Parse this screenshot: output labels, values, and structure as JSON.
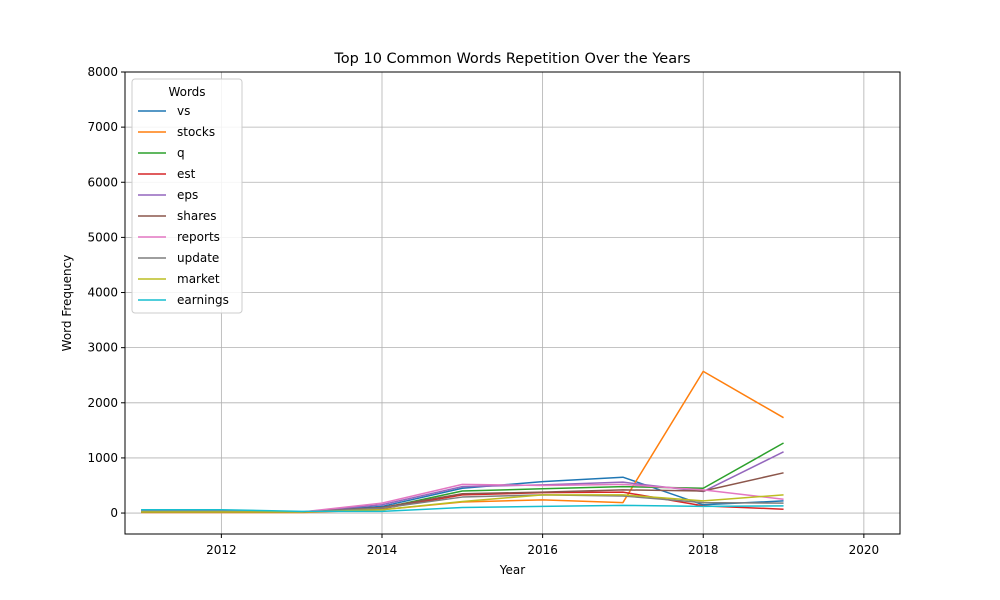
{
  "chart_data": {
    "type": "line",
    "title": "Top 10 Common Words Repetition Over the Years",
    "xlabel": "Year",
    "ylabel": "Word Frequency",
    "xlim": [
      2010.8,
      2020.45
    ],
    "ylim": [
      -380,
      8000
    ],
    "xticks": [
      "2012",
      "2014",
      "2016",
      "2018",
      "2020"
    ],
    "yticks": [
      "0",
      "1000",
      "2000",
      "3000",
      "4000",
      "5000",
      "6000",
      "7000",
      "8000"
    ],
    "grid": true,
    "legend_title": "Words",
    "legend_position": "top-left",
    "x": [
      2011,
      2012,
      2013,
      2014,
      2015,
      2016,
      2017,
      2018,
      2019
    ],
    "series": [
      {
        "name": "vs",
        "color": "#1f77b4",
        "values": [
          40,
          50,
          20,
          120,
          450,
          570,
          650,
          150,
          220
        ]
      },
      {
        "name": "stocks",
        "color": "#ff7f0e",
        "values": [
          10,
          10,
          10,
          60,
          200,
          240,
          190,
          2570,
          1730
        ]
      },
      {
        "name": "q",
        "color": "#2ca02c",
        "values": [
          20,
          30,
          20,
          90,
          400,
          440,
          480,
          450,
          1270
        ]
      },
      {
        "name": "est",
        "color": "#d62728",
        "values": [
          20,
          20,
          20,
          80,
          330,
          370,
          380,
          130,
          70
        ]
      },
      {
        "name": "eps",
        "color": "#9467bd",
        "values": [
          30,
          30,
          20,
          150,
          480,
          510,
          560,
          390,
          1110
        ]
      },
      {
        "name": "shares",
        "color": "#8c564b",
        "values": [
          20,
          20,
          20,
          100,
          350,
          380,
          420,
          400,
          730
        ]
      },
      {
        "name": "reports",
        "color": "#e377c2",
        "values": [
          40,
          40,
          20,
          180,
          520,
          500,
          520,
          420,
          250
        ]
      },
      {
        "name": "update",
        "color": "#7f7f7f",
        "values": [
          30,
          30,
          20,
          90,
          290,
          330,
          310,
          190,
          180
        ]
      },
      {
        "name": "market",
        "color": "#bcbd22",
        "values": [
          20,
          20,
          20,
          60,
          210,
          330,
          330,
          220,
          330
        ]
      },
      {
        "name": "earnings",
        "color": "#17becf",
        "values": [
          60,
          60,
          30,
          30,
          100,
          120,
          140,
          120,
          130
        ]
      }
    ]
  }
}
